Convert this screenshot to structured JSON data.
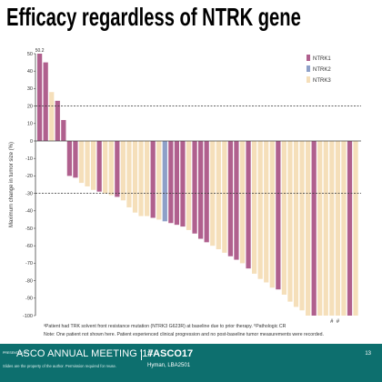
{
  "slide": {
    "title": "Efficacy regardless of NTRK gene",
    "footnote_1": "ᵃPatient had TRK solvent front resistance mutation (NTRK3 G623R) at baseline due to prior therapy. ᵇPathologic CR",
    "footnote_2": "Note: One patient not shown here. Patient experienced clinical progression and no post-baseline tumor measurements were recorded.",
    "markers": {
      "above_first_bar": "50.2",
      "under_bars": [
        "#",
        "#"
      ]
    }
  },
  "footer": {
    "presented_at": "PRESENTED AT:",
    "meeting": "ASCO ANNUAL MEETING '17",
    "hashtag": "#ASCO17",
    "disclaimer": "Slides are the property of the author. Permission required for reuse.",
    "speaker": "Hyman, LBA2501",
    "page": "13",
    "accent_color": "#0d6f6e"
  },
  "chart_data": {
    "type": "bar",
    "ylabel": "Maximum change in tumor size (%)",
    "ylim": [
      -100,
      50
    ],
    "yticks": [
      50,
      40,
      30,
      20,
      10,
      0,
      -10,
      -20,
      -30,
      -40,
      -50,
      -60,
      -70,
      -80,
      -90,
      -100
    ],
    "reference_lines": [
      20,
      -30
    ],
    "grid": false,
    "legend_position": "top-right",
    "colors": {
      "NTRK1": "#b0608e",
      "NTRK2": "#8ea0c8",
      "NTRK3": "#f5dfba"
    },
    "series": [
      {
        "name": "NTRK1"
      },
      {
        "name": "NTRK2"
      },
      {
        "name": "NTRK3"
      }
    ],
    "values": [
      50,
      45,
      28,
      23,
      12,
      -20,
      -21,
      -24,
      -26,
      -28,
      -29,
      -30,
      -31,
      -32,
      -34,
      -38,
      -41,
      -43,
      -43,
      -44,
      -45,
      -46,
      -47,
      -48,
      -49,
      -51,
      -53,
      -56,
      -58,
      -60,
      -62,
      -64,
      -66,
      -68,
      -70,
      -73,
      -76,
      -79,
      -81,
      -84,
      -85,
      -88,
      -92,
      -95,
      -97,
      -100,
      -100,
      -100,
      -100,
      -100,
      -100,
      -100,
      -100,
      -100
    ],
    "genes": [
      "NTRK1",
      "NTRK1",
      "NTRK3",
      "NTRK1",
      "NTRK1",
      "NTRK1",
      "NTRK1",
      "NTRK3",
      "NTRK3",
      "NTRK3",
      "NTRK1",
      "NTRK3",
      "NTRK3",
      "NTRK1",
      "NTRK3",
      "NTRK3",
      "NTRK3",
      "NTRK3",
      "NTRK3",
      "NTRK1",
      "NTRK3",
      "NTRK2",
      "NTRK1",
      "NTRK1",
      "NTRK1",
      "NTRK3",
      "NTRK1",
      "NTRK1",
      "NTRK1",
      "NTRK3",
      "NTRK3",
      "NTRK3",
      "NTRK1",
      "NTRK1",
      "NTRK3",
      "NTRK1",
      "NTRK3",
      "NTRK3",
      "NTRK3",
      "NTRK3",
      "NTRK1",
      "NTRK3",
      "NTRK3",
      "NTRK3",
      "NTRK3",
      "NTRK3",
      "NTRK1",
      "NTRK3",
      "NTRK3",
      "NTRK3",
      "NTRK3",
      "NTRK3",
      "NTRK1",
      "NTRK3"
    ]
  }
}
